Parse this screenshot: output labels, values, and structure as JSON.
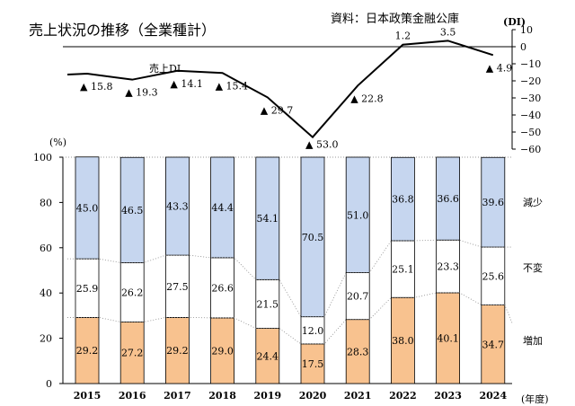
{
  "title": "売上状況の推移（全業種計）",
  "source": "資料：日本政策金融公庫",
  "chart_data": [
    {
      "type": "line",
      "name": "売上DI",
      "x": [
        "2015",
        "2016",
        "2017",
        "2018",
        "2019",
        "2020",
        "2021",
        "2022",
        "2023",
        "2024"
      ],
      "values": [
        -15.8,
        -19.3,
        -14.1,
        -15.4,
        -29.7,
        -53.0,
        -22.8,
        1.2,
        3.5,
        -4.9
      ],
      "value_labels": [
        "▲ 15.8",
        "▲ 19.3",
        "▲ 14.1",
        "▲ 15.4",
        "▲ 29.7",
        "▲ 53.0",
        "▲ 22.8",
        "1.2",
        "3.5",
        "▲ 4.9"
      ],
      "ylabel": "(DI)",
      "ylim": [
        -60,
        10
      ],
      "yticks": [
        "10",
        "0",
        "−10",
        "−20",
        "−30",
        "−40",
        "−50",
        "−60"
      ],
      "yaxis": "right"
    },
    {
      "type": "bar",
      "stacked": true,
      "categories": [
        "2015",
        "2016",
        "2017",
        "2018",
        "2019",
        "2020",
        "2021",
        "2022",
        "2023",
        "2024"
      ],
      "series": [
        {
          "name": "増加",
          "color": "#f8c28f",
          "values": [
            29.2,
            27.2,
            29.2,
            29.0,
            24.4,
            17.5,
            28.3,
            38.0,
            40.1,
            34.7
          ]
        },
        {
          "name": "不変",
          "color": "#ffffff",
          "values": [
            25.9,
            26.2,
            27.5,
            26.6,
            21.5,
            12.0,
            20.7,
            25.1,
            23.3,
            25.6
          ]
        },
        {
          "name": "減少",
          "color": "#c6d6ef",
          "values": [
            45.0,
            46.5,
            43.3,
            44.4,
            54.1,
            70.5,
            51.0,
            36.8,
            36.6,
            39.6
          ]
        }
      ],
      "ylabel": "(%)",
      "xlabel": "(年度)",
      "ylim": [
        0,
        100
      ],
      "yticks": [
        "0",
        "20",
        "40",
        "60",
        "80",
        "100"
      ]
    }
  ]
}
